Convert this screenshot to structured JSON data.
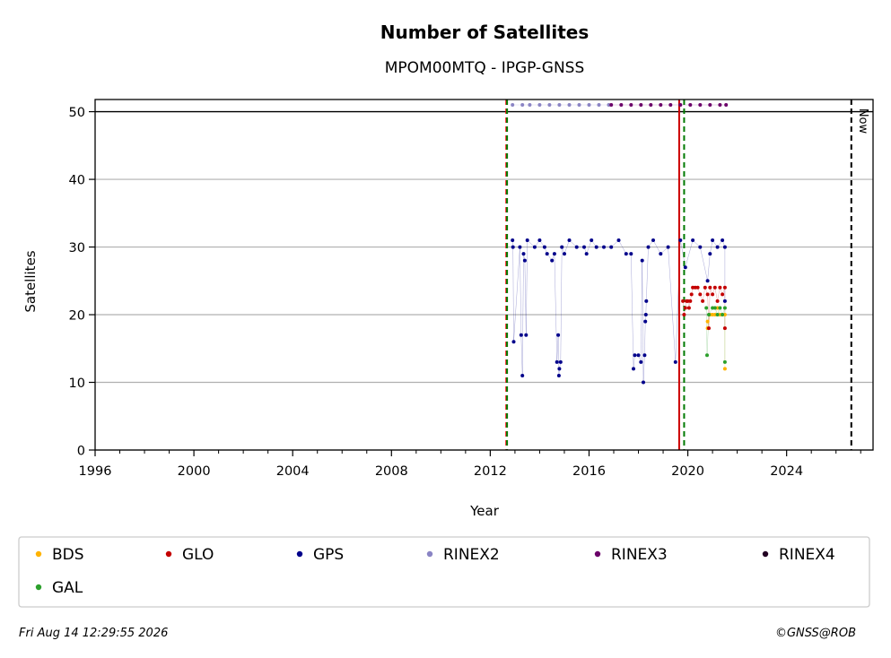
{
  "chart_data": {
    "type": "scatter",
    "title": "Number of Satellites",
    "subtitle": "MPOM00MTQ - IPGP-GNSS",
    "xlabel": "Year",
    "ylabel": "Satellites",
    "xlim": [
      1996,
      2027.5
    ],
    "ylim": [
      0,
      51.8
    ],
    "x_ticks": [
      1996,
      2000,
      2004,
      2008,
      2012,
      2016,
      2020,
      2024
    ],
    "y_ticks": [
      0,
      10,
      20,
      30,
      40,
      50
    ],
    "grid": "horizontal",
    "reference_line_y": 50,
    "vertical_lines": [
      {
        "x": 2012.65,
        "style": "dashed",
        "color": "#ff0000"
      },
      {
        "x": 2012.68,
        "style": "dashed",
        "color": "#007a00"
      },
      {
        "x": 2019.65,
        "style": "solid",
        "color": "#cc0000"
      },
      {
        "x": 2019.85,
        "style": "dashed",
        "color": "#007a00"
      },
      {
        "x": 2026.62,
        "style": "dashed",
        "color": "#000000",
        "label": "Now"
      }
    ],
    "legend_position": "bottom",
    "series": [
      {
        "name": "BDS",
        "color": "#ffb300",
        "points": [
          [
            2020.8,
            19
          ],
          [
            2020.8,
            18
          ],
          [
            2020.9,
            20
          ],
          [
            2021.0,
            20
          ],
          [
            2021.1,
            20
          ],
          [
            2021.2,
            21
          ],
          [
            2021.3,
            20
          ],
          [
            2021.4,
            20
          ],
          [
            2021.5,
            20
          ],
          [
            2021.5,
            12
          ]
        ]
      },
      {
        "name": "GLO",
        "color": "#c40000",
        "points": [
          [
            2019.8,
            22
          ],
          [
            2019.85,
            20
          ],
          [
            2019.9,
            21
          ],
          [
            2019.95,
            22
          ],
          [
            2020.0,
            22
          ],
          [
            2020.05,
            21
          ],
          [
            2020.1,
            22
          ],
          [
            2020.15,
            23
          ],
          [
            2020.2,
            24
          ],
          [
            2020.3,
            24
          ],
          [
            2020.4,
            24
          ],
          [
            2020.5,
            23
          ],
          [
            2020.6,
            22
          ],
          [
            2020.7,
            24
          ],
          [
            2020.8,
            23
          ],
          [
            2020.85,
            18
          ],
          [
            2020.9,
            24
          ],
          [
            2021.0,
            23
          ],
          [
            2021.1,
            24
          ],
          [
            2021.2,
            22
          ],
          [
            2021.3,
            24
          ],
          [
            2021.4,
            23
          ],
          [
            2021.5,
            24
          ],
          [
            2021.5,
            18
          ]
        ]
      },
      {
        "name": "GPS",
        "color": "#00008b",
        "points": [
          [
            2012.9,
            31
          ],
          [
            2012.92,
            30
          ],
          [
            2012.95,
            16
          ],
          [
            2013.2,
            30
          ],
          [
            2013.25,
            17
          ],
          [
            2013.3,
            11
          ],
          [
            2013.35,
            29
          ],
          [
            2013.4,
            28
          ],
          [
            2013.45,
            17
          ],
          [
            2013.5,
            31
          ],
          [
            2013.8,
            30
          ],
          [
            2014.0,
            31
          ],
          [
            2014.2,
            30
          ],
          [
            2014.3,
            29
          ],
          [
            2014.5,
            28
          ],
          [
            2014.6,
            29
          ],
          [
            2014.7,
            13
          ],
          [
            2014.75,
            17
          ],
          [
            2014.78,
            11
          ],
          [
            2014.8,
            12
          ],
          [
            2014.85,
            13
          ],
          [
            2014.9,
            30
          ],
          [
            2015.0,
            29
          ],
          [
            2015.2,
            31
          ],
          [
            2015.5,
            30
          ],
          [
            2015.8,
            30
          ],
          [
            2015.9,
            29
          ],
          [
            2016.1,
            31
          ],
          [
            2016.3,
            30
          ],
          [
            2016.6,
            30
          ],
          [
            2016.9,
            30
          ],
          [
            2017.2,
            31
          ],
          [
            2017.5,
            29
          ],
          [
            2017.7,
            29
          ],
          [
            2017.8,
            12
          ],
          [
            2017.85,
            14
          ],
          [
            2018.0,
            14
          ],
          [
            2018.1,
            13
          ],
          [
            2018.15,
            28
          ],
          [
            2018.2,
            10
          ],
          [
            2018.25,
            14
          ],
          [
            2018.28,
            19
          ],
          [
            2018.3,
            20
          ],
          [
            2018.32,
            22
          ],
          [
            2018.4,
            30
          ],
          [
            2018.6,
            31
          ],
          [
            2018.9,
            29
          ],
          [
            2019.2,
            30
          ],
          [
            2019.5,
            13
          ],
          [
            2019.7,
            31
          ],
          [
            2019.9,
            27
          ],
          [
            2020.2,
            31
          ],
          [
            2020.5,
            30
          ],
          [
            2020.8,
            25
          ],
          [
            2020.9,
            29
          ],
          [
            2021.0,
            31
          ],
          [
            2021.2,
            30
          ],
          [
            2021.4,
            31
          ],
          [
            2021.5,
            30
          ],
          [
            2021.5,
            22
          ]
        ]
      },
      {
        "name": "RINEX2",
        "color": "#8a84c4",
        "points": [
          [
            2012.9,
            51
          ],
          [
            2013.3,
            51
          ],
          [
            2013.6,
            51
          ],
          [
            2014.0,
            51
          ],
          [
            2014.4,
            51
          ],
          [
            2014.8,
            51
          ],
          [
            2015.2,
            51
          ],
          [
            2015.6,
            51
          ],
          [
            2016.0,
            51
          ],
          [
            2016.4,
            51
          ],
          [
            2016.8,
            51
          ]
        ]
      },
      {
        "name": "RINEX3",
        "color": "#6b0069",
        "points": [
          [
            2016.9,
            51
          ],
          [
            2017.3,
            51
          ],
          [
            2017.7,
            51
          ],
          [
            2018.1,
            51
          ],
          [
            2018.5,
            51
          ],
          [
            2018.9,
            51
          ],
          [
            2019.3,
            51
          ],
          [
            2019.7,
            51
          ],
          [
            2020.1,
            51
          ],
          [
            2020.5,
            51
          ],
          [
            2020.9,
            51
          ],
          [
            2021.3,
            51
          ],
          [
            2021.55,
            51
          ]
        ]
      },
      {
        "name": "RINEX4",
        "color": "#220022",
        "points": []
      },
      {
        "name": "GAL",
        "color": "#2ca02c",
        "points": [
          [
            2020.75,
            21
          ],
          [
            2020.78,
            14
          ],
          [
            2020.85,
            20
          ],
          [
            2021.0,
            21
          ],
          [
            2021.1,
            21
          ],
          [
            2021.2,
            20
          ],
          [
            2021.3,
            21
          ],
          [
            2021.4,
            20
          ],
          [
            2021.5,
            21
          ],
          [
            2021.5,
            13
          ]
        ]
      }
    ]
  },
  "footer": {
    "timestamp": "Fri Aug 14 12:29:55 2026",
    "copyright": "©GNSS@ROB"
  }
}
